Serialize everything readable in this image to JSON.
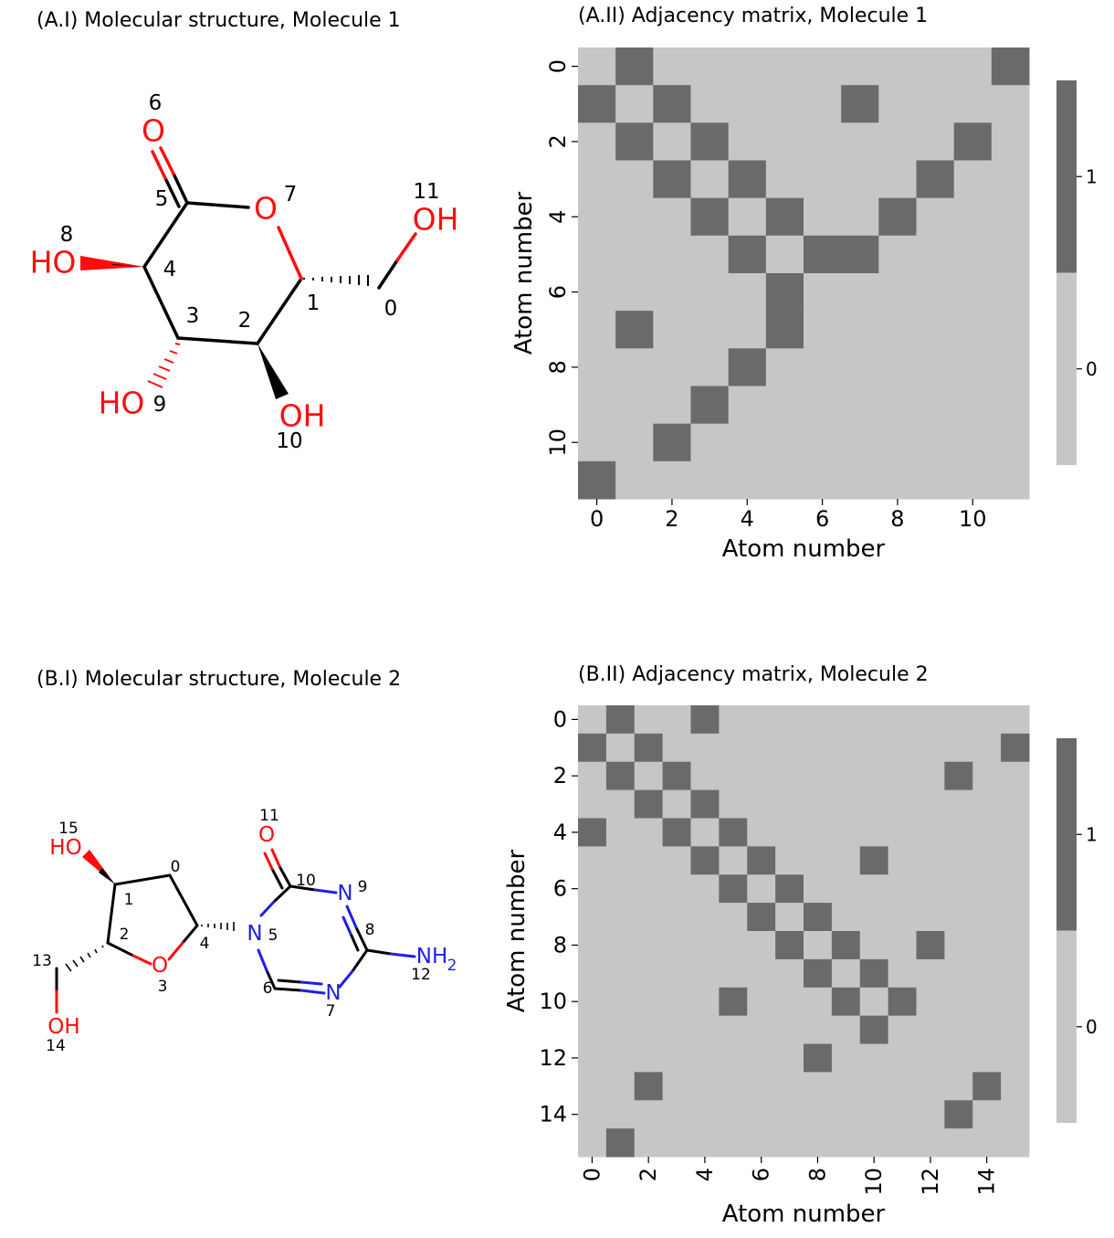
{
  "panels": {
    "a1_title": "(A.I) Molecular structure, Molecule 1",
    "a2_title": "(A.II) Adjacency matrix, Molecule 1",
    "b1_title": "(B.I) Molecular structure, Molecule 2",
    "b2_title": "(B.II) Adjacency matrix, Molecule 2"
  },
  "colors": {
    "off": "#c6c6c6",
    "on": "#6a6a6a",
    "oxygen": "#ff0d0d",
    "nitrogen": "#1f1fe6",
    "bond": "#000000"
  },
  "molecule1": {
    "atoms": [
      {
        "label": "6",
        "element": "O",
        "text": "O"
      },
      {
        "label": "5",
        "element": "C",
        "text": ""
      },
      {
        "label": "7",
        "element": "O",
        "text": "O"
      },
      {
        "label": "11",
        "element": "O",
        "text": "OH"
      },
      {
        "label": "8",
        "element": "O",
        "text": "HO"
      },
      {
        "label": "4",
        "element": "C",
        "text": ""
      },
      {
        "label": "1",
        "element": "C",
        "text": ""
      },
      {
        "label": "0",
        "element": "C",
        "text": ""
      },
      {
        "label": "3",
        "element": "C",
        "text": ""
      },
      {
        "label": "2",
        "element": "C",
        "text": ""
      },
      {
        "label": "9",
        "element": "O",
        "text": "HO"
      },
      {
        "label": "10",
        "element": "O",
        "text": "OH"
      }
    ]
  },
  "molecule2": {
    "atoms": [
      {
        "label": "11",
        "element": "O",
        "text": "O"
      },
      {
        "label": "15",
        "element": "O",
        "text": "HO"
      },
      {
        "label": "0",
        "element": "C",
        "text": ""
      },
      {
        "label": "10",
        "element": "C",
        "text": ""
      },
      {
        "label": "9",
        "element": "N",
        "text": "N"
      },
      {
        "label": "1",
        "element": "C",
        "text": ""
      },
      {
        "label": "8",
        "element": "C",
        "text": ""
      },
      {
        "label": "2",
        "element": "C",
        "text": ""
      },
      {
        "label": "4",
        "element": "C",
        "text": ""
      },
      {
        "label": "5",
        "element": "N",
        "text": "N"
      },
      {
        "label": "13",
        "element": "C",
        "text": ""
      },
      {
        "label": "12",
        "element": "N",
        "text": "NH"
      },
      {
        "label": "3",
        "element": "O",
        "text": "O"
      },
      {
        "label": "6",
        "element": "C",
        "text": ""
      },
      {
        "label": "7",
        "element": "N",
        "text": "N"
      },
      {
        "label": "14",
        "element": "O",
        "text": "OH"
      }
    ],
    "nh2_subscript": "2"
  },
  "chart_data": [
    {
      "type": "heatmap",
      "title": "(A.II) Adjacency matrix, Molecule 1",
      "xlabel": "Atom number",
      "ylabel": "Atom number",
      "size": 12,
      "x_ticks": [
        "0",
        "2",
        "4",
        "6",
        "8",
        "10"
      ],
      "y_ticks": [
        "0",
        "2",
        "4",
        "6",
        "8",
        "10"
      ],
      "colorbar_ticks": [
        "1",
        "0"
      ],
      "edges": [
        [
          0,
          1
        ],
        [
          0,
          11
        ],
        [
          1,
          2
        ],
        [
          1,
          7
        ],
        [
          2,
          3
        ],
        [
          2,
          10
        ],
        [
          3,
          4
        ],
        [
          3,
          9
        ],
        [
          4,
          5
        ],
        [
          4,
          8
        ],
        [
          5,
          6
        ],
        [
          5,
          7
        ]
      ]
    },
    {
      "type": "heatmap",
      "title": "(B.II) Adjacency matrix, Molecule 2",
      "xlabel": "Atom number",
      "ylabel": "Atom number",
      "size": 16,
      "x_ticks": [
        "0",
        "2",
        "4",
        "6",
        "8",
        "10",
        "12",
        "14"
      ],
      "y_ticks": [
        "0",
        "2",
        "4",
        "6",
        "8",
        "10",
        "12",
        "14"
      ],
      "colorbar_ticks": [
        "1",
        "0"
      ],
      "edges": [
        [
          0,
          1
        ],
        [
          0,
          4
        ],
        [
          1,
          2
        ],
        [
          1,
          15
        ],
        [
          2,
          3
        ],
        [
          2,
          13
        ],
        [
          3,
          4
        ],
        [
          4,
          5
        ],
        [
          5,
          6
        ],
        [
          5,
          10
        ],
        [
          6,
          7
        ],
        [
          7,
          8
        ],
        [
          8,
          9
        ],
        [
          8,
          12
        ],
        [
          9,
          10
        ],
        [
          10,
          11
        ],
        [
          13,
          14
        ]
      ]
    }
  ]
}
